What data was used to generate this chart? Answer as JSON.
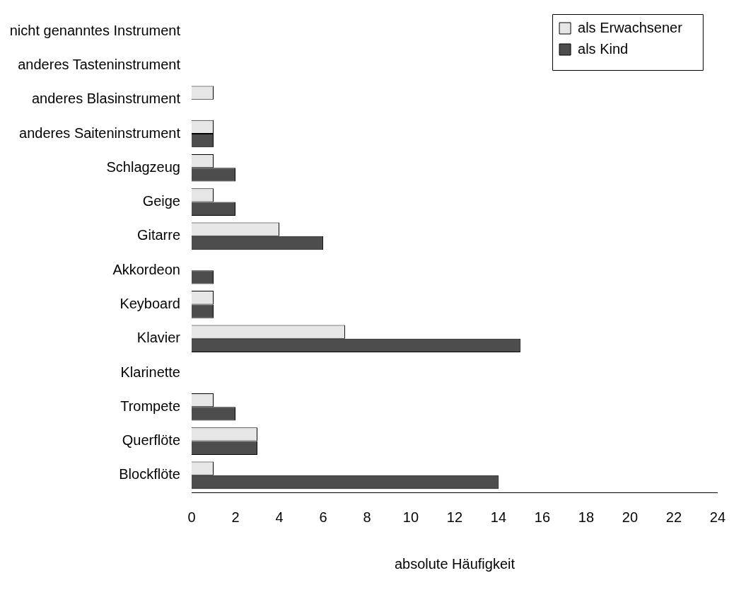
{
  "chart_data": {
    "type": "bar",
    "orientation": "horizontal",
    "xlabel": "absolute Häufigkeit",
    "categories": [
      "nicht genanntes Instrument",
      "anderes Tasteninstrument",
      "anderes Blasinstrument",
      "anderes Saiteninstrument",
      "Schlagzeug",
      "Geige",
      "Gitarre",
      "Akkordeon",
      "Keyboard",
      "Klavier",
      "Klarinette",
      "Trompete",
      "Querflöte",
      "Blockflöte"
    ],
    "series": [
      {
        "name": "als Erwachsener",
        "color": "#e6e6e6",
        "values": [
          0,
          0,
          1,
          1,
          1,
          1,
          4,
          0,
          1,
          7,
          0,
          1,
          3,
          1
        ]
      },
      {
        "name": "als Kind",
        "color": "#4d4d4d",
        "values": [
          0,
          0,
          0,
          1,
          2,
          2,
          6,
          1,
          1,
          15,
          0,
          2,
          3,
          14
        ]
      }
    ],
    "xlim": [
      0,
      24
    ],
    "xticks": [
      0,
      2,
      4,
      6,
      8,
      10,
      12,
      14,
      16,
      18,
      20,
      22,
      24
    ],
    "grid": false,
    "legend": "top right"
  }
}
